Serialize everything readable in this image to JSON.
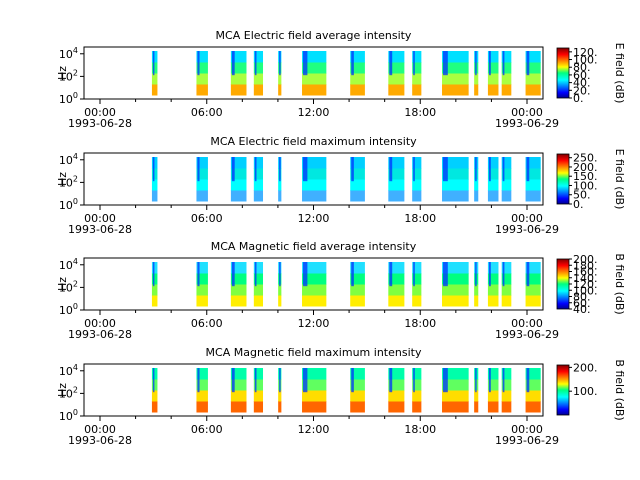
{
  "chart_data": [
    {
      "type": "heatmap",
      "title": "MCA  Electric field average intensity",
      "ylabel": "Hz",
      "colorbar_label": "E field (dB)",
      "colorbar_ticks": [
        "0.",
        "20.",
        "40.",
        "60.",
        "80.",
        "100.",
        "120."
      ],
      "colorbar_range": [
        0,
        130
      ],
      "yticks": [
        "10^0",
        "10^2",
        "10^4"
      ],
      "xticks": [
        {
          "time": "00:00",
          "date": "1993-06-28"
        },
        {
          "time": "06:00",
          "date": ""
        },
        {
          "time": "12:00",
          "date": ""
        },
        {
          "time": "18:00",
          "date": ""
        },
        {
          "time": "00:00",
          "date": "1993-06-29"
        }
      ]
    },
    {
      "type": "heatmap",
      "title": "MCA  Electric field maximum intensity",
      "ylabel": "Hz",
      "colorbar_label": "E field (dB)",
      "colorbar_ticks": [
        "0.",
        "50.",
        "100.",
        "150.",
        "200.",
        "250."
      ],
      "colorbar_range": [
        0,
        270
      ],
      "yticks": [
        "10^0",
        "10^2",
        "10^4"
      ],
      "xticks": [
        {
          "time": "00:00",
          "date": "1993-06-28"
        },
        {
          "time": "06:00",
          "date": ""
        },
        {
          "time": "12:00",
          "date": ""
        },
        {
          "time": "18:00",
          "date": ""
        },
        {
          "time": "00:00",
          "date": "1993-06-29"
        }
      ]
    },
    {
      "type": "heatmap",
      "title": "MCA  Magnetic field average intensity",
      "ylabel": "Hz",
      "colorbar_label": "B field (dB)",
      "colorbar_ticks": [
        "40.",
        "60.",
        "80.",
        "100.",
        "120.",
        "140.",
        "160.",
        "180.",
        "200."
      ],
      "colorbar_range": [
        40,
        200
      ],
      "yticks": [
        "10^0",
        "10^2",
        "10^4"
      ],
      "xticks": [
        {
          "time": "00:00",
          "date": "1993-06-28"
        },
        {
          "time": "06:00",
          "date": ""
        },
        {
          "time": "12:00",
          "date": ""
        },
        {
          "time": "18:00",
          "date": ""
        },
        {
          "time": "00:00",
          "date": "1993-06-29"
        }
      ]
    },
    {
      "type": "heatmap",
      "title": "MCA  Magnetic field maximum intensity",
      "ylabel": "Hz",
      "colorbar_label": "B field (dB)",
      "colorbar_ticks": [
        "100.",
        "200."
      ],
      "colorbar_range": [
        0,
        210
      ],
      "yticks": [
        "10^0",
        "10^2",
        "10^4"
      ],
      "xticks": [
        {
          "time": "00:00",
          "date": "1993-06-28"
        },
        {
          "time": "06:00",
          "date": ""
        },
        {
          "time": "12:00",
          "date": ""
        },
        {
          "time": "18:00",
          "date": ""
        },
        {
          "time": "00:00",
          "date": "1993-06-29"
        }
      ]
    }
  ]
}
